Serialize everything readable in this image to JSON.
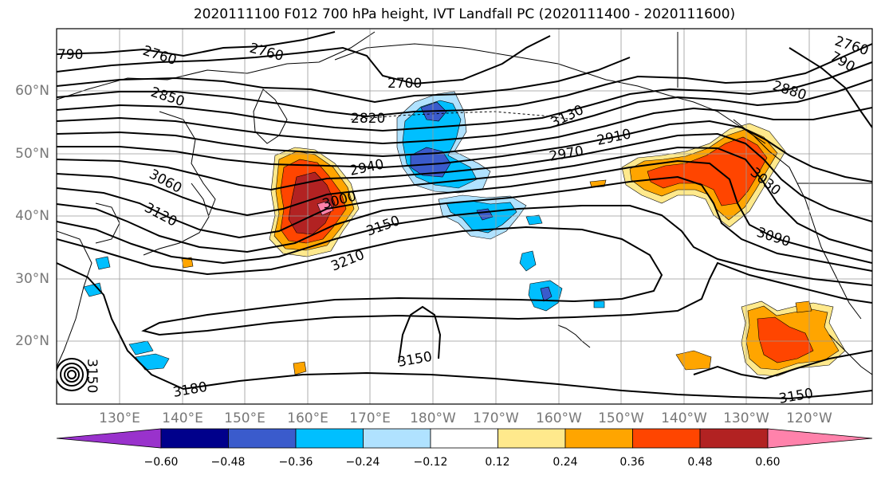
{
  "title": "2020111100 F012 700 hPa height, IVT Landfall PC (2020111400 - 2020111600)",
  "lat_labels": [
    "60°N",
    "50°N",
    "40°N",
    "30°N",
    "20°N"
  ],
  "lon_labels": [
    "130°E",
    "140°E",
    "150°E",
    "160°E",
    "170°E",
    "180°W",
    "170°W",
    "160°W",
    "150°W",
    "140°W",
    "130°W",
    "120°W"
  ],
  "contour_labels": [
    "790",
    "2760",
    "2760",
    "2700",
    "2850",
    "2820",
    "3130",
    "2880",
    "790",
    "2760",
    "2910",
    "2970",
    "2940",
    "3060",
    "3000",
    "3120",
    "3150",
    "3030",
    "3210",
    "3090",
    "3150",
    "3180",
    "3150",
    "3150"
  ],
  "colorbar": {
    "ticks": [
      "−0.60",
      "−0.48",
      "−0.36",
      "−0.24",
      "−0.12",
      "0.12",
      "0.24",
      "0.36",
      "0.48",
      "0.60"
    ],
    "colors": [
      "#9932cc",
      "#00008b",
      "#3a5bcc",
      "#00bfff",
      "#b0e2ff",
      "#ffffff",
      "#ffe98c",
      "#ffa500",
      "#ff4500",
      "#b22222",
      "#ff82ab"
    ]
  },
  "shade_colors": {
    "neg1": "#b0e2ff",
    "neg2": "#00bfff",
    "neg3": "#3a5bcc",
    "neg4": "#00008b",
    "pos1": "#ffe98c",
    "pos2": "#ffa500",
    "pos3": "#ff4500",
    "pos4": "#b22222",
    "pos5": "#ff82ab"
  }
}
